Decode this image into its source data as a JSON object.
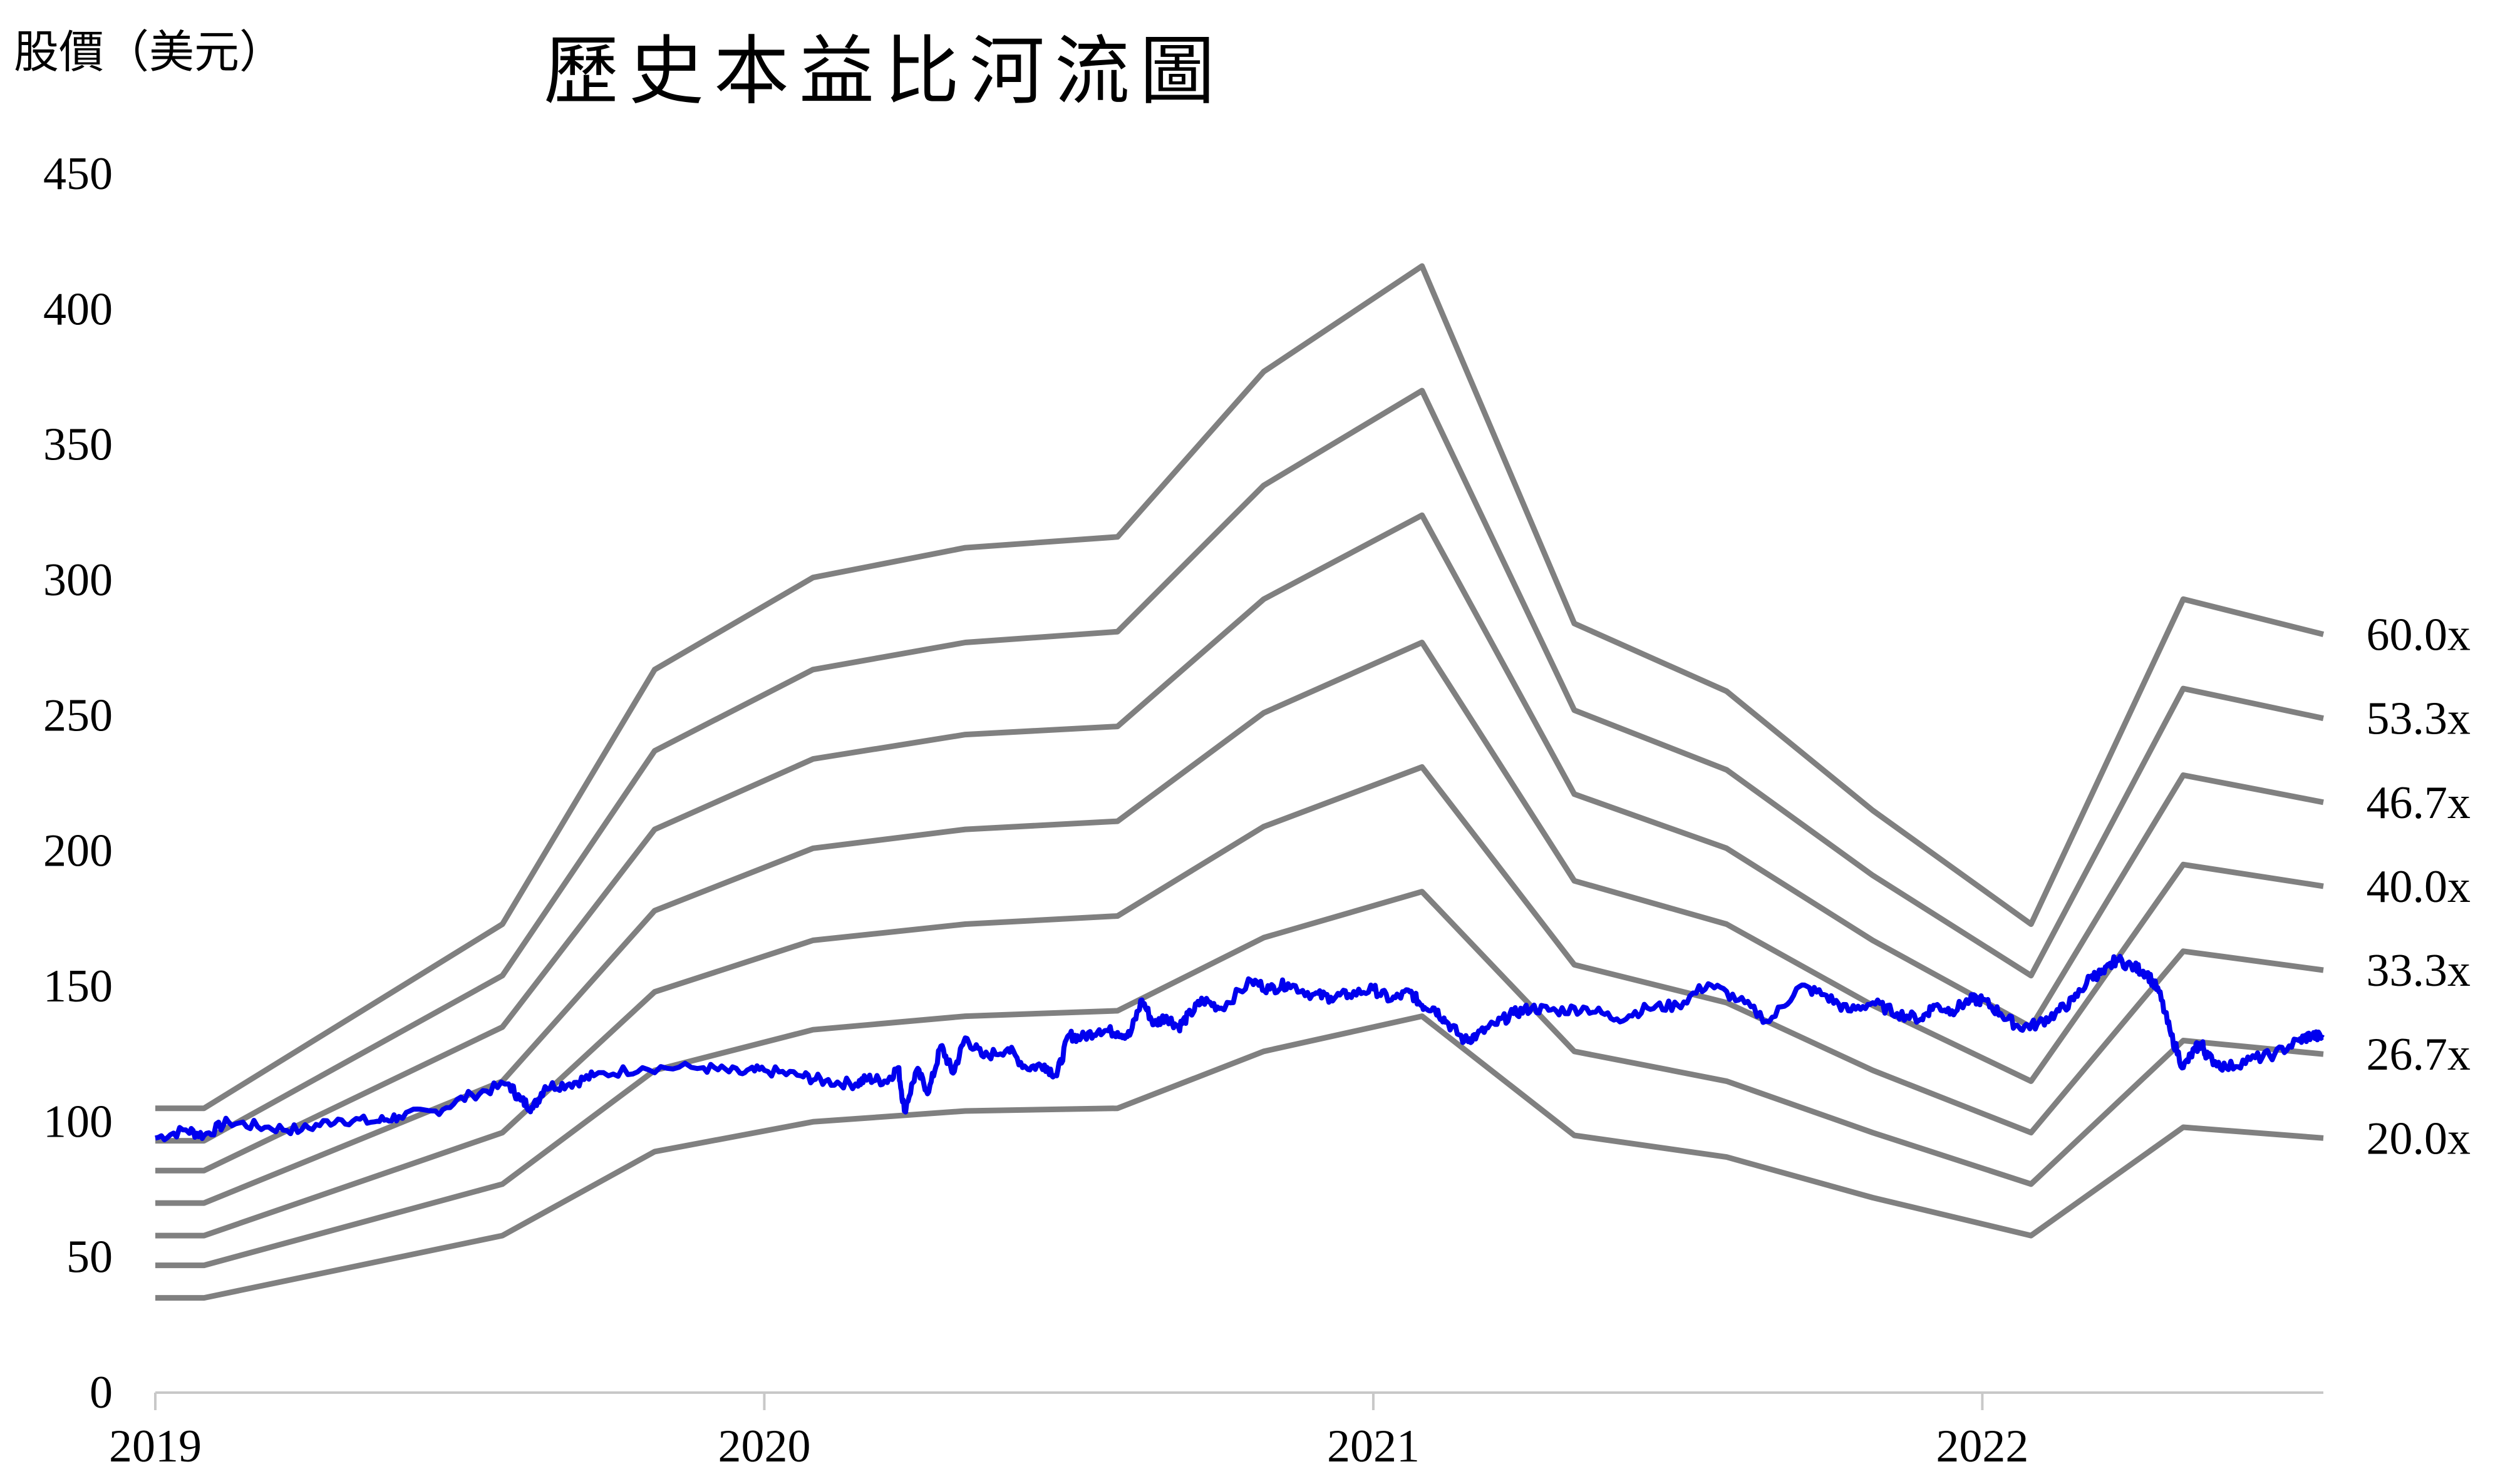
{
  "chart_data": {
    "type": "line",
    "title": "歷史本益比河流圖",
    "ylabel": "股價（美元）",
    "xlabel": "",
    "ylim": [
      0,
      450
    ],
    "yticks": [
      0,
      50,
      100,
      150,
      200,
      250,
      300,
      350,
      400,
      450
    ],
    "xlim": [
      2019.0,
      2022.56
    ],
    "xticks": [
      2019,
      2020,
      2021,
      2022
    ],
    "grid": false,
    "legend": "none",
    "river_lines": [
      {
        "label": "60.0x",
        "x": [
          2019.0,
          2019.08,
          2019.57,
          2019.82,
          2020.08,
          2020.33,
          2020.58,
          2020.82,
          2021.08,
          2021.33,
          2021.58,
          2021.82,
          2022.08,
          2022.33,
          2022.56
        ],
        "y": [
          105,
          105,
          173,
          267,
          301,
          312,
          316,
          377,
          416,
          284,
          259,
          215,
          173,
          293,
          280
        ]
      },
      {
        "label": "53.3x",
        "x": [
          2019.0,
          2019.08,
          2019.57,
          2019.82,
          2020.08,
          2020.33,
          2020.58,
          2020.82,
          2021.08,
          2021.33,
          2021.58,
          2021.82,
          2022.08,
          2022.33,
          2022.56
        ],
        "y": [
          93,
          93,
          154,
          237,
          267,
          277,
          281,
          335,
          370,
          252,
          230,
          191,
          154,
          260,
          249
        ]
      },
      {
        "label": "46.7x",
        "x": [
          2019.0,
          2019.08,
          2019.57,
          2019.82,
          2020.08,
          2020.33,
          2020.58,
          2020.82,
          2021.08,
          2021.33,
          2021.58,
          2021.82,
          2022.08,
          2022.33,
          2022.56
        ],
        "y": [
          82,
          82,
          135,
          208,
          234,
          243,
          246,
          293,
          324,
          221,
          201,
          167,
          135,
          228,
          218
        ]
      },
      {
        "label": "40.0x",
        "x": [
          2019.0,
          2019.08,
          2019.57,
          2019.82,
          2020.08,
          2020.33,
          2020.58,
          2020.82,
          2021.08,
          2021.33,
          2021.58,
          2021.82,
          2022.08,
          2022.33,
          2022.56
        ],
        "y": [
          70,
          70,
          115,
          178,
          201,
          208,
          211,
          251,
          277,
          189,
          173,
          143,
          115,
          195,
          187
        ]
      },
      {
        "label": "33.3x",
        "x": [
          2019.0,
          2019.08,
          2019.57,
          2019.82,
          2020.08,
          2020.33,
          2020.58,
          2020.82,
          2021.08,
          2021.33,
          2021.58,
          2021.82,
          2022.08,
          2022.33,
          2022.56
        ],
        "y": [
          58,
          58,
          96,
          148,
          167,
          173,
          176,
          209,
          231,
          158,
          144,
          119,
          96,
          163,
          156
        ]
      },
      {
        "label": "26.7x",
        "x": [
          2019.0,
          2019.08,
          2019.57,
          2019.82,
          2020.08,
          2020.33,
          2020.58,
          2020.82,
          2021.08,
          2021.33,
          2021.58,
          2021.82,
          2022.08,
          2022.33,
          2022.56
        ],
        "y": [
          47,
          47,
          77,
          119,
          134,
          139,
          141,
          168,
          185,
          126,
          115,
          96,
          77,
          130,
          125
        ]
      },
      {
        "label": "20.0x",
        "x": [
          2019.0,
          2019.08,
          2019.57,
          2019.82,
          2020.08,
          2020.33,
          2020.58,
          2020.82,
          2021.08,
          2021.33,
          2021.58,
          2021.82,
          2022.08,
          2022.33,
          2022.56
        ],
        "y": [
          35,
          35,
          58,
          89,
          100,
          104,
          105,
          126,
          139,
          95,
          87,
          72,
          58,
          98,
          94
        ]
      }
    ],
    "price": {
      "x": [
        2019.0,
        2019.05,
        2019.08,
        2019.12,
        2019.18,
        2019.24,
        2019.3,
        2019.36,
        2019.4,
        2019.46,
        2019.52,
        2019.58,
        2019.6,
        2019.62,
        2019.64,
        2019.68,
        2019.72,
        2019.8,
        2019.9,
        2019.96,
        2020.0,
        2020.06,
        2020.1,
        2020.15,
        2020.17,
        2020.2,
        2020.22,
        2020.23,
        2020.25,
        2020.27,
        2020.29,
        2020.31,
        2020.33,
        2020.36,
        2020.4,
        2020.43,
        2020.46,
        2020.48,
        2020.5,
        2020.52,
        2020.55,
        2020.58,
        2020.6,
        2020.62,
        2020.64,
        2020.66,
        2020.68,
        2020.7,
        2020.72,
        2020.75,
        2020.8,
        2020.83,
        2020.86,
        2020.9,
        2020.93,
        2020.96,
        2021.0,
        2021.03,
        2021.06,
        2021.08,
        2021.1,
        2021.12,
        2021.15,
        2021.17,
        2021.2,
        2021.23,
        2021.26,
        2021.3,
        2021.35,
        2021.4,
        2021.45,
        2021.5,
        2021.55,
        2021.6,
        2021.65,
        2021.7,
        2021.74,
        2021.78,
        2021.82,
        2021.86,
        2021.9,
        2021.92,
        2021.95,
        2021.98,
        2022.0,
        2022.03,
        2022.06,
        2022.09,
        2022.12,
        2022.15,
        2022.18,
        2022.2,
        2022.22,
        2022.25,
        2022.27,
        2022.29,
        2022.31,
        2022.33,
        2022.35,
        2022.36,
        2022.37,
        2022.4,
        2022.44,
        2022.48,
        2022.52,
        2022.54,
        2022.56
      ],
      "y": [
        94,
        97,
        95,
        100,
        98,
        97,
        101,
        100,
        102,
        104,
        110,
        114,
        108,
        105,
        113,
        114,
        117,
        120,
        120,
        118,
        119,
        117,
        115,
        114,
        116,
        115,
        120,
        104,
        119,
        111,
        128,
        118,
        131,
        124,
        127,
        120,
        121,
        117,
        132,
        131,
        134,
        133,
        132,
        145,
        136,
        139,
        135,
        140,
        145,
        142,
        152,
        149,
        151,
        147,
        146,
        147,
        149,
        145,
        148,
        143,
        142,
        137,
        130,
        132,
        136,
        140,
        142,
        141,
        142,
        138,
        142,
        143,
        151,
        145,
        137,
        150,
        147,
        141,
        144,
        140,
        138,
        143,
        141,
        145,
        145,
        140,
        135,
        136,
        140,
        145,
        154,
        155,
        160,
        157,
        155,
        148,
        132,
        120,
        127,
        129,
        124,
        120,
        123,
        125,
        130,
        132,
        131
      ]
    },
    "colors": {
      "river": "#808080",
      "price": "#0000ee",
      "axis": "#c8c8c8"
    }
  }
}
